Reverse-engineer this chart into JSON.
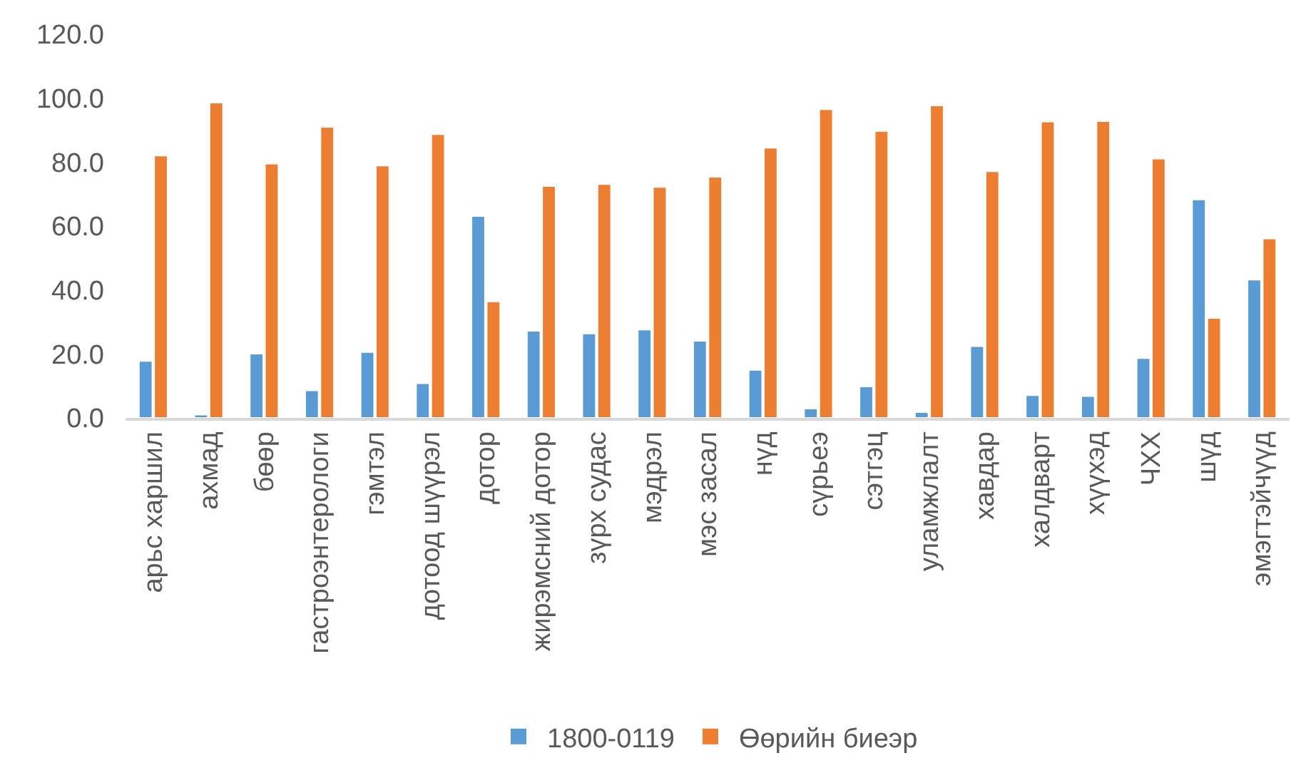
{
  "chart_data": {
    "type": "bar",
    "categories": [
      "арьс харшил",
      "ахмад",
      "бөөр",
      "гастроэнтерологи",
      "гэмтэл",
      "дотоод шүүрэл",
      "дотор",
      "жирэмсний дотор",
      "зүрх судас",
      "мэдрэл",
      "мэс засал",
      "нүд",
      "сүрьеэ",
      "сэтгэц",
      "уламжлалт",
      "хавдар",
      "халдварт",
      "хүүхэд",
      "ЧХХ",
      "шүд",
      "эмэгтэйчүүд"
    ],
    "series": [
      {
        "name": "1800-0119",
        "color": "#5b9bd5",
        "values": [
          17.8,
          1.0,
          20.1,
          8.6,
          20.6,
          10.8,
          63.1,
          27.2,
          26.4,
          27.6,
          24.1,
          15.0,
          2.9,
          9.8,
          1.8,
          22.4,
          7.1,
          6.8,
          18.7,
          68.3,
          43.2
        ]
      },
      {
        "name": "Өөрийн биеэр",
        "color": "#ed7d31",
        "values": [
          82.0,
          98.6,
          79.5,
          91.0,
          78.9,
          88.7,
          36.4,
          72.5,
          73.1,
          72.2,
          75.4,
          84.5,
          96.5,
          89.7,
          97.7,
          77.1,
          92.7,
          92.8,
          81.1,
          31.2,
          56.1
        ]
      }
    ],
    "ylim": [
      0,
      120
    ],
    "yticks": [
      {
        "value": 0,
        "label": "0.0"
      },
      {
        "value": 20,
        "label": "20.0"
      },
      {
        "value": 40,
        "label": "40.0"
      },
      {
        "value": 60,
        "label": "60.0"
      },
      {
        "value": 80,
        "label": "80.0"
      },
      {
        "value": 100,
        "label": "100.0"
      },
      {
        "value": 120,
        "label": "120.0"
      }
    ],
    "legend": "bottom"
  }
}
